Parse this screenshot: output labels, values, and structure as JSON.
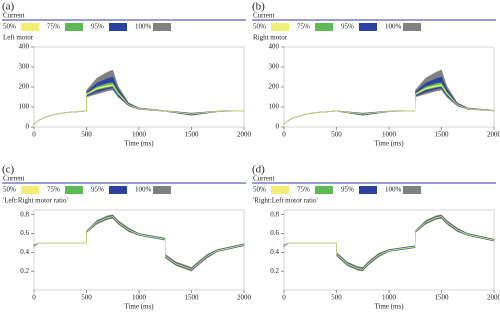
{
  "chart_data": [
    {
      "type": "fan",
      "panel_label": "(a)",
      "title": "Current",
      "subtitle": "Left motor",
      "x_label": "Time (ms)",
      "xlim": [
        0,
        2000
      ],
      "xticks": [
        0,
        500,
        1000,
        1500,
        2000
      ],
      "ylim": [
        0,
        400
      ],
      "yticks": [
        0,
        100,
        200,
        300,
        400
      ],
      "x": [
        0,
        50,
        100,
        200,
        300,
        500,
        501,
        600,
        700,
        750,
        800,
        900,
        1000,
        1250,
        1500,
        1750,
        2000
      ],
      "series": [
        {
          "name": "50%",
          "color": "#f2ee74",
          "upper": [
            15,
            35,
            48,
            63,
            72,
            80,
            165,
            195,
            208,
            212,
            171,
            112,
            92,
            80,
            65,
            78,
            81
          ],
          "lower": [
            15,
            35,
            48,
            63,
            72,
            80,
            162,
            190,
            202,
            206,
            167,
            111,
            91,
            80,
            64,
            78,
            80
          ]
        },
        {
          "name": "75%",
          "color": "#5cba55",
          "upper": [
            15,
            35,
            48,
            63,
            72,
            80,
            168,
            202,
            218,
            222,
            177,
            113,
            92,
            80,
            66,
            78,
            81
          ],
          "lower": [
            15,
            35,
            48,
            63,
            72,
            80,
            160,
            185,
            198,
            202,
            163,
            110,
            91,
            80,
            63,
            78,
            80
          ]
        },
        {
          "name": "95%",
          "color": "#2d41a0",
          "upper": [
            16,
            36,
            49,
            64,
            73,
            81,
            175,
            220,
            242,
            250,
            190,
            117,
            94,
            81,
            68,
            79,
            81
          ],
          "lower": [
            14,
            34,
            47,
            62,
            71,
            79,
            155,
            175,
            190,
            195,
            157,
            108,
            90,
            79,
            60,
            77,
            80
          ]
        },
        {
          "name": "100%",
          "color": "#808080",
          "upper": [
            16,
            36,
            49,
            64,
            73,
            81,
            185,
            245,
            275,
            285,
            205,
            122,
            96,
            82,
            70,
            80,
            82
          ],
          "lower": [
            14,
            34,
            47,
            62,
            71,
            79,
            150,
            165,
            180,
            185,
            150,
            105,
            88,
            78,
            58,
            76,
            80
          ]
        }
      ]
    },
    {
      "type": "fan",
      "panel_label": "(b)",
      "title": "Current",
      "subtitle": "Right motor",
      "x_label": "Time (ms)",
      "xlim": [
        0,
        2000
      ],
      "xticks": [
        0,
        500,
        1000,
        1500,
        2000
      ],
      "ylim": [
        0,
        400
      ],
      "yticks": [
        0,
        100,
        200,
        300,
        400
      ],
      "x": [
        0,
        50,
        100,
        200,
        300,
        500,
        750,
        1000,
        1250,
        1251,
        1350,
        1450,
        1500,
        1550,
        1650,
        1750,
        2000
      ],
      "series": [
        {
          "name": "50%",
          "color": "#f2ee74",
          "upper": [
            15,
            35,
            48,
            63,
            72,
            80,
            65,
            78,
            81,
            165,
            195,
            208,
            212,
            171,
            112,
            92,
            82
          ],
          "lower": [
            15,
            35,
            48,
            63,
            72,
            80,
            64,
            78,
            80,
            162,
            190,
            202,
            206,
            167,
            111,
            91,
            81
          ]
        },
        {
          "name": "75%",
          "color": "#5cba55",
          "upper": [
            15,
            35,
            48,
            63,
            72,
            80,
            66,
            78,
            81,
            168,
            202,
            218,
            222,
            177,
            113,
            92,
            82
          ],
          "lower": [
            15,
            35,
            48,
            63,
            72,
            80,
            63,
            78,
            80,
            160,
            185,
            198,
            202,
            163,
            110,
            91,
            81
          ]
        },
        {
          "name": "95%",
          "color": "#2d41a0",
          "upper": [
            16,
            36,
            49,
            64,
            73,
            81,
            68,
            79,
            81,
            175,
            220,
            242,
            250,
            190,
            117,
            94,
            83
          ],
          "lower": [
            14,
            34,
            47,
            62,
            71,
            79,
            60,
            77,
            80,
            155,
            175,
            190,
            195,
            157,
            108,
            90,
            80
          ]
        },
        {
          "name": "100%",
          "color": "#808080",
          "upper": [
            16,
            36,
            49,
            64,
            73,
            81,
            70,
            80,
            82,
            185,
            245,
            275,
            285,
            205,
            122,
            96,
            84
          ],
          "lower": [
            14,
            34,
            47,
            62,
            71,
            79,
            58,
            76,
            80,
            150,
            165,
            180,
            185,
            150,
            105,
            88,
            80
          ]
        }
      ]
    },
    {
      "type": "fan",
      "panel_label": "(c)",
      "title": "Current",
      "subtitle": "'Left:Right motor ratio'",
      "x_label": "Time (ms)",
      "xlim": [
        0,
        2000
      ],
      "xticks": [
        0,
        500,
        1000,
        1500,
        2000
      ],
      "ylim": [
        0,
        0.85
      ],
      "yticks": [
        0.2,
        0.4,
        0.6,
        0.8
      ],
      "x": [
        0,
        50,
        100,
        500,
        501,
        600,
        700,
        750,
        800,
        900,
        1000,
        1250,
        1251,
        1350,
        1450,
        1500,
        1550,
        1650,
        1750,
        2000
      ],
      "series": [
        {
          "name": "50%",
          "color": "#f2ee74",
          "upper": [
            0.47,
            0.5,
            0.5,
            0.5,
            0.62,
            0.72,
            0.77,
            0.78,
            0.72,
            0.64,
            0.59,
            0.54,
            0.36,
            0.28,
            0.24,
            0.22,
            0.27,
            0.36,
            0.42,
            0.48
          ],
          "lower": [
            0.47,
            0.5,
            0.5,
            0.5,
            0.618,
            0.718,
            0.768,
            0.778,
            0.718,
            0.638,
            0.588,
            0.538,
            0.358,
            0.278,
            0.238,
            0.218,
            0.268,
            0.358,
            0.418,
            0.478
          ]
        },
        {
          "name": "75%",
          "color": "#5cba55",
          "upper": [
            0.475,
            0.5,
            0.5,
            0.5,
            0.625,
            0.725,
            0.775,
            0.785,
            0.725,
            0.645,
            0.595,
            0.545,
            0.365,
            0.285,
            0.245,
            0.225,
            0.275,
            0.365,
            0.425,
            0.485
          ],
          "lower": [
            0.465,
            0.5,
            0.5,
            0.5,
            0.615,
            0.715,
            0.765,
            0.775,
            0.715,
            0.635,
            0.585,
            0.535,
            0.355,
            0.275,
            0.235,
            0.215,
            0.265,
            0.355,
            0.415,
            0.475
          ]
        },
        {
          "name": "95%",
          "color": "#2d41a0",
          "upper": [
            0.48,
            0.5,
            0.5,
            0.5,
            0.63,
            0.73,
            0.78,
            0.79,
            0.73,
            0.65,
            0.6,
            0.55,
            0.37,
            0.29,
            0.25,
            0.23,
            0.28,
            0.37,
            0.43,
            0.49
          ],
          "lower": [
            0.46,
            0.5,
            0.5,
            0.5,
            0.61,
            0.71,
            0.76,
            0.77,
            0.71,
            0.63,
            0.58,
            0.53,
            0.35,
            0.27,
            0.23,
            0.21,
            0.26,
            0.35,
            0.41,
            0.47
          ]
        },
        {
          "name": "100%",
          "color": "#808080",
          "upper": [
            0.48,
            0.5,
            0.5,
            0.5,
            0.63,
            0.74,
            0.79,
            0.8,
            0.74,
            0.66,
            0.6,
            0.55,
            0.38,
            0.3,
            0.26,
            0.24,
            0.29,
            0.38,
            0.43,
            0.49
          ],
          "lower": [
            0.46,
            0.5,
            0.5,
            0.5,
            0.61,
            0.7,
            0.75,
            0.76,
            0.7,
            0.62,
            0.58,
            0.53,
            0.34,
            0.26,
            0.22,
            0.2,
            0.25,
            0.34,
            0.41,
            0.47
          ]
        }
      ]
    },
    {
      "type": "fan",
      "panel_label": "(d)",
      "title": "Current",
      "subtitle": "'Right:Left motor ratio'",
      "x_label": "Time (ms)",
      "xlim": [
        0,
        2000
      ],
      "xticks": [
        0,
        500,
        1000,
        1500,
        2000
      ],
      "ylim": [
        0,
        0.85
      ],
      "yticks": [
        0.2,
        0.4,
        0.6,
        0.8
      ],
      "x": [
        0,
        50,
        100,
        500,
        501,
        600,
        700,
        750,
        800,
        900,
        1000,
        1250,
        1251,
        1350,
        1450,
        1500,
        1550,
        1650,
        1750,
        2000
      ],
      "series": [
        {
          "name": "50%",
          "color": "#f2ee74",
          "upper": [
            0.47,
            0.5,
            0.5,
            0.5,
            0.38,
            0.28,
            0.23,
            0.22,
            0.28,
            0.37,
            0.42,
            0.46,
            0.62,
            0.72,
            0.77,
            0.78,
            0.72,
            0.64,
            0.59,
            0.53
          ],
          "lower": [
            0.468,
            0.5,
            0.5,
            0.5,
            0.378,
            0.278,
            0.228,
            0.218,
            0.278,
            0.368,
            0.418,
            0.458,
            0.618,
            0.718,
            0.768,
            0.778,
            0.718,
            0.638,
            0.588,
            0.528
          ]
        },
        {
          "name": "75%",
          "color": "#5cba55",
          "upper": [
            0.475,
            0.5,
            0.5,
            0.5,
            0.385,
            0.285,
            0.235,
            0.225,
            0.285,
            0.375,
            0.425,
            0.465,
            0.625,
            0.725,
            0.775,
            0.785,
            0.725,
            0.645,
            0.595,
            0.535
          ],
          "lower": [
            0.465,
            0.5,
            0.5,
            0.5,
            0.375,
            0.275,
            0.225,
            0.215,
            0.275,
            0.365,
            0.415,
            0.455,
            0.615,
            0.715,
            0.765,
            0.775,
            0.715,
            0.635,
            0.585,
            0.525
          ]
        },
        {
          "name": "95%",
          "color": "#2d41a0",
          "upper": [
            0.48,
            0.5,
            0.5,
            0.5,
            0.39,
            0.29,
            0.24,
            0.23,
            0.29,
            0.38,
            0.43,
            0.47,
            0.63,
            0.73,
            0.78,
            0.79,
            0.73,
            0.65,
            0.6,
            0.54
          ],
          "lower": [
            0.46,
            0.5,
            0.5,
            0.5,
            0.37,
            0.27,
            0.22,
            0.21,
            0.27,
            0.36,
            0.41,
            0.45,
            0.61,
            0.71,
            0.76,
            0.77,
            0.71,
            0.63,
            0.58,
            0.52
          ]
        },
        {
          "name": "100%",
          "color": "#808080",
          "upper": [
            0.48,
            0.5,
            0.5,
            0.5,
            0.4,
            0.3,
            0.25,
            0.24,
            0.3,
            0.39,
            0.43,
            0.47,
            0.63,
            0.74,
            0.79,
            0.8,
            0.74,
            0.66,
            0.6,
            0.54
          ],
          "lower": [
            0.46,
            0.5,
            0.5,
            0.5,
            0.36,
            0.26,
            0.21,
            0.2,
            0.26,
            0.35,
            0.41,
            0.45,
            0.61,
            0.7,
            0.75,
            0.76,
            0.7,
            0.62,
            0.58,
            0.52
          ]
        }
      ]
    }
  ]
}
